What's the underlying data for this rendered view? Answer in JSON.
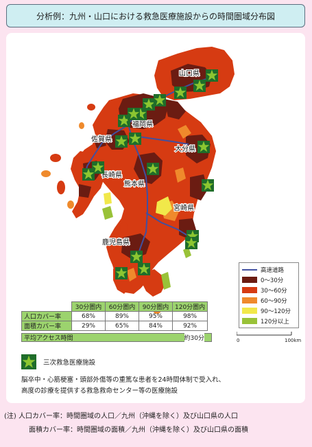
{
  "title": "分析例：九州・山口における救急医療施設からの時間圏域分布図",
  "prefectures": [
    "山口県",
    "福岡県",
    "佐賀県",
    "大分県",
    "長崎県",
    "熊本県",
    "宮崎県",
    "鹿児島県"
  ],
  "legend": {
    "highway": "高速道路",
    "bands": [
      {
        "label": "0〜30分",
        "color": "#6b1c12"
      },
      {
        "label": "30〜60分",
        "color": "#d63b12"
      },
      {
        "label": "60〜90分",
        "color": "#ef8a2c"
      },
      {
        "label": "90〜120分",
        "color": "#f1e84a"
      },
      {
        "label": "120分以上",
        "color": "#99c238"
      }
    ]
  },
  "scale_bar": {
    "start": "0",
    "end": "100km"
  },
  "table": {
    "columns": [
      "30分圏内",
      "60分圏内",
      "90分圏内",
      "120分圏内"
    ],
    "rows": [
      {
        "label": "人口カバー率",
        "values": [
          "68%",
          "89%",
          "95%",
          "98%"
        ]
      },
      {
        "label": "面積カバー率",
        "values": [
          "29%",
          "65%",
          "84%",
          "92%"
        ]
      }
    ],
    "avg_label": "平均アクセス時間",
    "avg_value": "約30分"
  },
  "facility": {
    "label": "三次救急医療施設",
    "desc1": "脳卒中・心筋梗塞・頭部外傷等の重篤な患者を24時間体制で受入れ、",
    "desc2": "高度の診療を提供する救急救命センター等の医療施設"
  },
  "notes": [
    "(注) 人口カバー率：時間圏域の人口／九州（沖縄を除く）及び山口県の人口",
    "面積カバー率：時間圏域の面積／九州（沖縄を除く）及び山口県の面積"
  ],
  "colors": {
    "star_fill": "#8cc631",
    "star_box": "#1f6d2a",
    "highway": "#4050a0",
    "background": "#fce4f0",
    "title_bg": "#cfeef2",
    "table_header": "#9cd36e"
  }
}
